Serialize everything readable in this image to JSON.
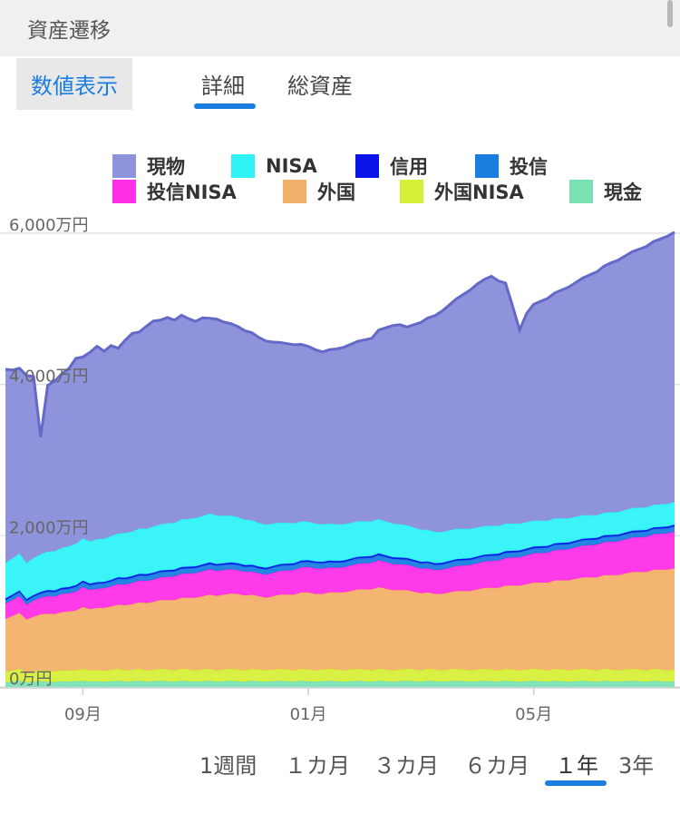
{
  "header": {
    "title": "資産遷移"
  },
  "controls": {
    "numeric_button": "数値表示",
    "tabs": [
      {
        "label": "詳細",
        "active": true
      },
      {
        "label": "総資産",
        "active": false
      }
    ],
    "ranges": [
      "1週間",
      "１カ月",
      "３カ月",
      "６カ月",
      "１年",
      "3年"
    ],
    "active_range": "１年",
    "accent": "#1a7de0"
  },
  "chart_data": {
    "type": "area",
    "stacked": true,
    "y_unit": "万円",
    "ylim": [
      0,
      6000
    ],
    "y_ticks": [
      "0万円",
      "2,000万円",
      "4,000万円",
      "6,000万円"
    ],
    "x_tick_labels": [
      "09月",
      "01月",
      "05月"
    ],
    "x_tick_index": [
      11,
      43,
      75
    ],
    "grid": true,
    "legend_position": "top",
    "series": [
      {
        "name": "現金",
        "color": "#7be0b4",
        "values": [
          60,
          70,
          80,
          60,
          70,
          75,
          70,
          65,
          75,
          70,
          75,
          80,
          70,
          75,
          70,
          75,
          80,
          70,
          75,
          80,
          70,
          75,
          80,
          75,
          70,
          80,
          75,
          70,
          75,
          80,
          70,
          75,
          80,
          75,
          70,
          80,
          75,
          70,
          75,
          80,
          75,
          70,
          80,
          75,
          70,
          75,
          80,
          75,
          70,
          75,
          80,
          75,
          70,
          80,
          75,
          70,
          75,
          80,
          75,
          70,
          80,
          75,
          70,
          75,
          80,
          75,
          70,
          75,
          80,
          75,
          70,
          80,
          75,
          70,
          75,
          80,
          75,
          70,
          80,
          75,
          70,
          75,
          80,
          75,
          70,
          80,
          75,
          70,
          75,
          80,
          75,
          70,
          80,
          75,
          70,
          75
        ]
      },
      {
        "name": "外国NISA",
        "color": "#d6f03a",
        "values": [
          140,
          150,
          160,
          130,
          140,
          145,
          150,
          140,
          145,
          150,
          145,
          160,
          150,
          150,
          145,
          150,
          160,
          150,
          150,
          160,
          150,
          150,
          160,
          155,
          150,
          160,
          155,
          150,
          155,
          160,
          150,
          155,
          160,
          155,
          150,
          160,
          155,
          150,
          155,
          160,
          155,
          150,
          160,
          155,
          150,
          155,
          160,
          155,
          150,
          155,
          160,
          155,
          150,
          160,
          155,
          150,
          155,
          160,
          155,
          150,
          160,
          155,
          150,
          155,
          160,
          155,
          150,
          155,
          160,
          155,
          150,
          160,
          155,
          150,
          155,
          160,
          155,
          150,
          160,
          155,
          150,
          155,
          160,
          155,
          150,
          160,
          155,
          150,
          155,
          160,
          155,
          150,
          160,
          155,
          150,
          155
        ]
      },
      {
        "name": "外国",
        "color": "#f3b06a",
        "values": [
          700,
          720,
          740,
          700,
          720,
          740,
          750,
          760,
          770,
          780,
          790,
          820,
          810,
          820,
          830,
          840,
          850,
          860,
          870,
          880,
          890,
          900,
          910,
          920,
          930,
          940,
          950,
          960,
          970,
          980,
          985,
          990,
          995,
          1000,
          990,
          980,
          970,
          960,
          970,
          980,
          990,
          1000,
          1010,
          1020,
          1010,
          1000,
          1010,
          1020,
          1030,
          1040,
          1050,
          1060,
          1070,
          1080,
          1070,
          1060,
          1050,
          1040,
          1030,
          1020,
          1010,
          1000,
          1010,
          1020,
          1030,
          1040,
          1050,
          1060,
          1070,
          1080,
          1090,
          1100,
          1110,
          1120,
          1130,
          1140,
          1150,
          1160,
          1170,
          1180,
          1190,
          1200,
          1210,
          1220,
          1230,
          1240,
          1250,
          1260,
          1270,
          1280,
          1290,
          1300,
          1310,
          1320,
          1330,
          1340
        ]
      },
      {
        "name": "投信NISA",
        "color": "#ff2fe8",
        "values": [
          200,
          210,
          220,
          200,
          210,
          220,
          230,
          230,
          240,
          240,
          250,
          260,
          250,
          255,
          260,
          265,
          270,
          275,
          280,
          285,
          290,
          295,
          300,
          305,
          310,
          315,
          320,
          325,
          330,
          335,
          330,
          325,
          320,
          315,
          310,
          305,
          300,
          305,
          310,
          315,
          320,
          325,
          330,
          335,
          340,
          335,
          330,
          325,
          330,
          335,
          340,
          345,
          350,
          355,
          350,
          345,
          340,
          335,
          330,
          325,
          320,
          315,
          320,
          325,
          330,
          335,
          340,
          345,
          350,
          355,
          360,
          365,
          370,
          375,
          380,
          385,
          390,
          395,
          400,
          405,
          410,
          415,
          420,
          425,
          430,
          435,
          440,
          445,
          450,
          455,
          460,
          465,
          470,
          475,
          480,
          485
        ]
      },
      {
        "name": "投信",
        "color": "#1a7de0",
        "values": [
          50,
          50,
          55,
          50,
          55,
          55,
          60,
          60,
          60,
          60,
          65,
          65,
          65,
          65,
          65,
          65,
          70,
          70,
          70,
          70,
          70,
          70,
          70,
          70,
          70,
          70,
          70,
          70,
          70,
          70,
          70,
          70,
          70,
          70,
          70,
          70,
          70,
          70,
          70,
          70,
          70,
          70,
          70,
          70,
          70,
          70,
          70,
          70,
          70,
          70,
          70,
          70,
          70,
          70,
          70,
          70,
          70,
          70,
          70,
          70,
          70,
          70,
          70,
          70,
          70,
          70,
          70,
          70,
          70,
          70,
          70,
          70,
          70,
          70,
          70,
          70,
          70,
          70,
          70,
          70,
          70,
          70,
          70,
          70,
          70,
          70,
          70,
          70,
          70,
          70,
          70,
          70,
          70,
          70,
          70,
          70
        ]
      },
      {
        "name": "信用",
        "color": "#0a14e8",
        "values": [
          20,
          20,
          20,
          20,
          20,
          20,
          20,
          20,
          20,
          20,
          20,
          20,
          20,
          20,
          20,
          20,
          20,
          20,
          20,
          20,
          20,
          20,
          20,
          20,
          20,
          20,
          20,
          20,
          20,
          20,
          20,
          20,
          20,
          20,
          20,
          20,
          20,
          20,
          20,
          20,
          20,
          20,
          20,
          20,
          20,
          20,
          20,
          20,
          20,
          20,
          20,
          20,
          20,
          20,
          20,
          20,
          20,
          20,
          20,
          20,
          20,
          20,
          20,
          20,
          20,
          20,
          20,
          20,
          20,
          20,
          20,
          20,
          20,
          20,
          20,
          20,
          20,
          20,
          20,
          20,
          20,
          20,
          20,
          20,
          20,
          20,
          20,
          20,
          20,
          20,
          20,
          20,
          20,
          20,
          20,
          20
        ]
      },
      {
        "name": "NISA",
        "color": "#2ff3f7",
        "values": [
          470,
          480,
          490,
          480,
          490,
          500,
          510,
          520,
          530,
          540,
          550,
          560,
          560,
          570,
          570,
          580,
          580,
          590,
          590,
          600,
          600,
          610,
          610,
          620,
          620,
          630,
          630,
          640,
          640,
          650,
          640,
          630,
          620,
          610,
          600,
          590,
          580,
          570,
          560,
          550,
          540,
          530,
          520,
          510,
          500,
          495,
          490,
          485,
          480,
          475,
          470,
          465,
          460,
          455,
          450,
          445,
          440,
          435,
          430,
          425,
          420,
          415,
          410,
          405,
          400,
          395,
          390,
          385,
          380,
          375,
          370,
          365,
          360,
          355,
          350,
          345,
          340,
          335,
          330,
          325,
          320,
          315,
          310,
          305,
          300,
          300,
          300,
          300,
          300,
          300,
          300,
          300,
          300,
          300,
          300,
          300
        ]
      },
      {
        "name": "現物",
        "color": "#8f93db",
        "stroke": "#6468c8",
        "values": [
          2560,
          2490,
          2450,
          2480,
          2400,
          1550,
          2200,
          2250,
          2300,
          2350,
          2450,
          2400,
          2500,
          2550,
          2480,
          2520,
          2450,
          2550,
          2620,
          2600,
          2680,
          2720,
          2700,
          2720,
          2680,
          2700,
          2650,
          2600,
          2620,
          2580,
          2600,
          2560,
          2540,
          2520,
          2500,
          2480,
          2450,
          2430,
          2400,
          2380,
          2370,
          2360,
          2340,
          2320,
          2300,
          2280,
          2300,
          2320,
          2340,
          2360,
          2380,
          2400,
          2420,
          2500,
          2560,
          2620,
          2640,
          2620,
          2680,
          2740,
          2800,
          2860,
          2920,
          2980,
          3040,
          3100,
          3160,
          3220,
          3260,
          3300,
          3240,
          3180,
          2880,
          2560,
          2760,
          2860,
          2900,
          2940,
          2980,
          3020,
          3060,
          3100,
          3140,
          3180,
          3220,
          3260,
          3300,
          3330,
          3360,
          3390,
          3420,
          3450,
          3480,
          3510,
          3540,
          3570
        ]
      }
    ]
  }
}
